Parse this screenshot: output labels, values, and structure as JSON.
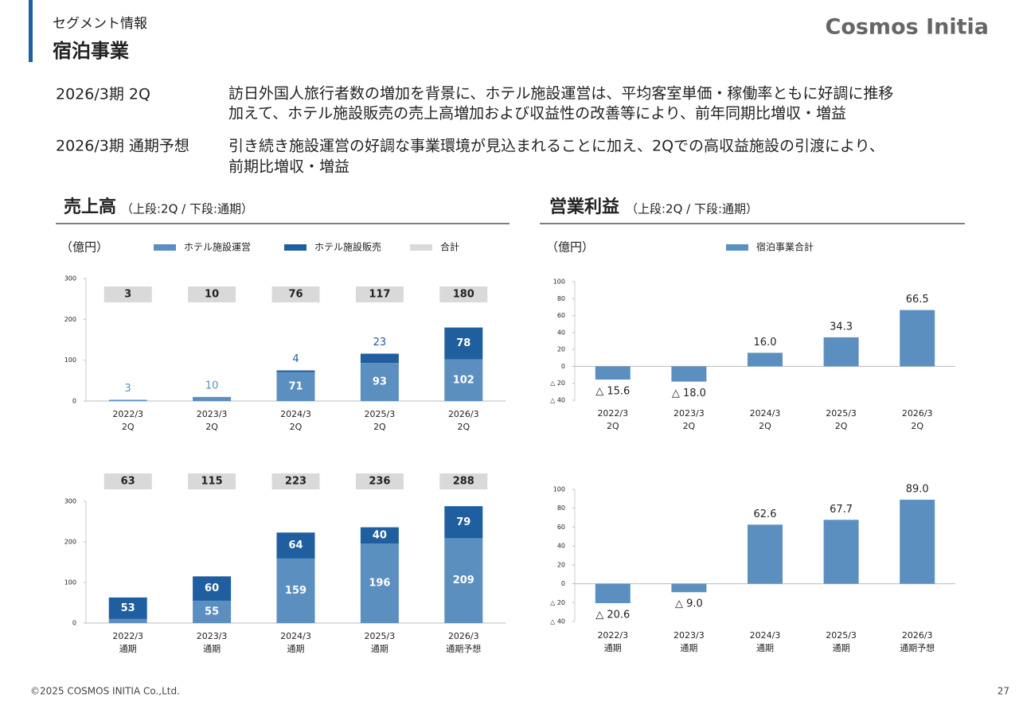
{
  "header": {
    "category": "セグメント情報",
    "title": "宿泊事業",
    "logo": "Cosmos Initia"
  },
  "summary": [
    {
      "label": "2026/3期 2Q",
      "lines": [
        "訪日外国人旅行者数の増加を背景に、ホテル施設運営は、平均客室単価・稼働率ともに好調に推移",
        "加えて、ホテル施設販売の売上高増加および収益性の改善等により、前年同期比増収・増益"
      ]
    },
    {
      "label": "2026/3期 通期予想",
      "lines": [
        "引き続き施設運営の好調な事業環境が見込まれることに加え、2Qでの高収益施設の引渡により、",
        "前期比増収・増益"
      ]
    }
  ],
  "sections": [
    {
      "title": "売上高",
      "subtitle": "（上段:2Q / 下段:通期）"
    },
    {
      "title": "営業利益",
      "subtitle": "（上段:2Q / 下段:通期）"
    }
  ],
  "chart_data": [
    {
      "type": "stacked_bar",
      "unit": "（億円）",
      "legend": true,
      "categories": [
        [
          "2022/3",
          "2Q"
        ],
        [
          "2023/3",
          "2Q"
        ],
        [
          "2024/3",
          "2Q"
        ],
        [
          "2025/3",
          "2Q"
        ],
        [
          "2026/3",
          "2Q"
        ]
      ],
      "series": [
        {
          "name": "ホテル施設運営",
          "color": "#5b8fc0",
          "values": [
            3,
            10,
            71,
            93,
            102
          ]
        },
        {
          "name": "ホテル施設販売",
          "color": "#1f5fa0",
          "values": [
            null,
            null,
            4,
            23,
            78
          ]
        }
      ],
      "totals": {
        "name": "合計",
        "color": "#d9d9d9",
        "values": [
          3,
          10,
          76,
          117,
          180
        ]
      },
      "ylim": [
        0,
        300
      ],
      "yticks": [
        0,
        100,
        200,
        300
      ]
    },
    {
      "type": "stacked_bar",
      "legend": false,
      "categories": [
        [
          "2022/3",
          "通期"
        ],
        [
          "2023/3",
          "通期"
        ],
        [
          "2024/3",
          "通期"
        ],
        [
          "2025/3",
          "通期"
        ],
        [
          "2026/3",
          "通期予想"
        ]
      ],
      "series": [
        {
          "color": "#5b8fc0",
          "values": [
            10,
            55,
            159,
            196,
            209
          ]
        },
        {
          "color": "#1f5fa0",
          "values": [
            53,
            60,
            64,
            40,
            79
          ]
        }
      ],
      "totals": {
        "color": "#d9d9d9",
        "values": [
          63,
          115,
          223,
          236,
          288
        ]
      },
      "ylim": [
        0,
        300
      ],
      "yticks": [
        0,
        100,
        200,
        300
      ]
    },
    {
      "type": "bar",
      "unit": "（億円）",
      "legend": true,
      "categories": [
        [
          "2022/3",
          "2Q"
        ],
        [
          "2023/3",
          "2Q"
        ],
        [
          "2024/3",
          "2Q"
        ],
        [
          "2025/3",
          "2Q"
        ],
        [
          "2026/3",
          "2Q"
        ]
      ],
      "series": [
        {
          "name": "宿泊事業合計",
          "color": "#5b8fc0",
          "values": [
            -15.6,
            -18.0,
            16.0,
            34.3,
            66.5
          ],
          "value_labels": [
            "△ 15.6",
            "△ 18.0",
            "16.0",
            "34.3",
            "66.5"
          ]
        }
      ],
      "ylim": [
        -40,
        100
      ],
      "yticks": [
        {
          "value": -40,
          "label": "△ 40"
        },
        {
          "value": -20,
          "label": "△ 20"
        },
        0,
        20,
        40,
        60,
        80,
        100
      ]
    },
    {
      "type": "bar",
      "legend": false,
      "categories": [
        [
          "2022/3",
          "通期"
        ],
        [
          "2023/3",
          "通期"
        ],
        [
          "2024/3",
          "通期"
        ],
        [
          "2025/3",
          "通期"
        ],
        [
          "2026/3",
          "通期予想"
        ]
      ],
      "series": [
        {
          "color": "#5b8fc0",
          "values": [
            -20.6,
            -9.0,
            62.6,
            67.7,
            89.0
          ],
          "value_labels": [
            "△ 20.6",
            "△ 9.0",
            "62.6",
            "67.7",
            "89.0"
          ]
        }
      ],
      "ylim": [
        -40,
        100
      ],
      "yticks": [
        {
          "value": -40,
          "label": "△ 40"
        },
        {
          "value": -20,
          "label": "△ 20"
        },
        0,
        20,
        40,
        60,
        80,
        100
      ]
    }
  ],
  "footer": {
    "copyright": "©2025 COSMOS INITIA Co.,Ltd.",
    "page": "27"
  }
}
